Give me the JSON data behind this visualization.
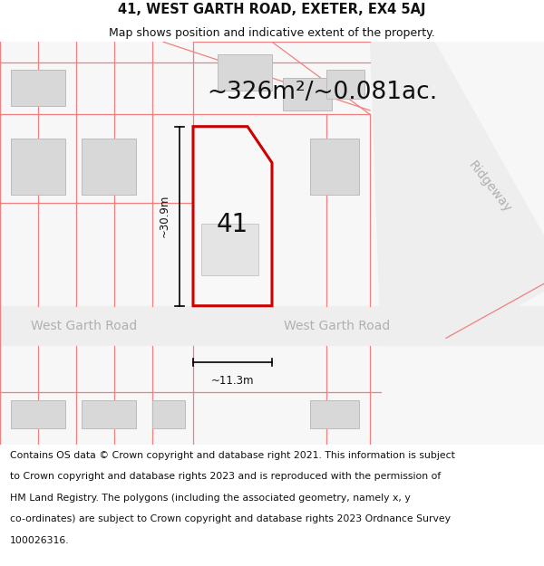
{
  "title": "41, WEST GARTH ROAD, EXETER, EX4 5AJ",
  "subtitle": "Map shows position and indicative extent of the property.",
  "area_label": "~326m²/~0.081ac.",
  "number_label": "41",
  "dim_height": "~30.9m",
  "dim_width": "~11.3m",
  "road_label_left": "West Garth Road",
  "road_label_right": "West Garth Road",
  "road_label_diagonal": "Ridgeway",
  "copyright_text": "Contains OS data © Crown copyright and database right 2021. This information is subject to Crown copyright and database rights 2023 and is reproduced with the permission of HM Land Registry. The polygons (including the associated geometry, namely x, y co-ordinates) are subject to Crown copyright and database rights 2023 Ordnance Survey 100026316.",
  "bg_color": "#ffffff",
  "map_bg": "#f7f7f7",
  "property_color": "#cc0000",
  "pink_line_color": "#f08080",
  "gray_bldg_color": "#d8d8d8",
  "gray_bldg_edge": "#bbbbbb",
  "road_color": "#eeeeee",
  "title_fontsize": 10,
  "subtitle_fontsize": 9,
  "area_fontsize": 20,
  "number_fontsize": 20,
  "dim_fontsize": 8.5,
  "road_fontsize": 10.5,
  "copyright_fontsize": 7.8
}
